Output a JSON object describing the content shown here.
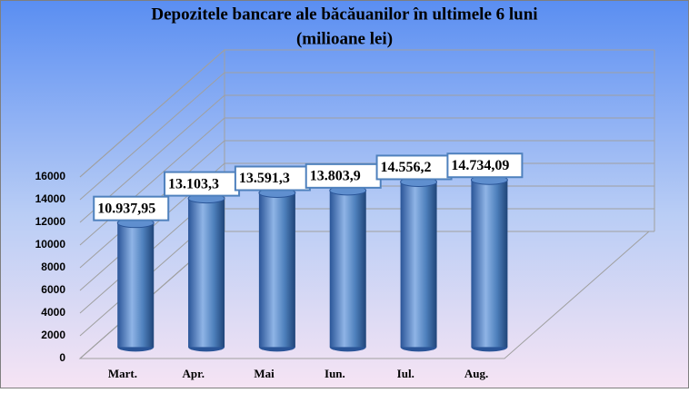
{
  "chart_data": {
    "type": "bar3d",
    "title": "Depozitele bancare ale băcăuanilor în ultimele 6 luni",
    "subtitle": "(milioane lei)",
    "categories": [
      "Mart.",
      "Apr.",
      "Mai",
      "Iun.",
      "Iul.",
      "Aug."
    ],
    "values": [
      10937.95,
      13103.3,
      13591.3,
      13803.9,
      14556.2,
      14734.09
    ],
    "value_labels": [
      "10.937,95",
      "13.103,3",
      "13.591,3",
      "13.803,9",
      "14.556,2",
      "14.734,09"
    ],
    "color": "#4f81bd",
    "ylim": [
      0,
      16000
    ],
    "yticks": [
      0,
      2000,
      4000,
      6000,
      8000,
      10000,
      12000,
      14000,
      16000
    ],
    "grid": true
  }
}
